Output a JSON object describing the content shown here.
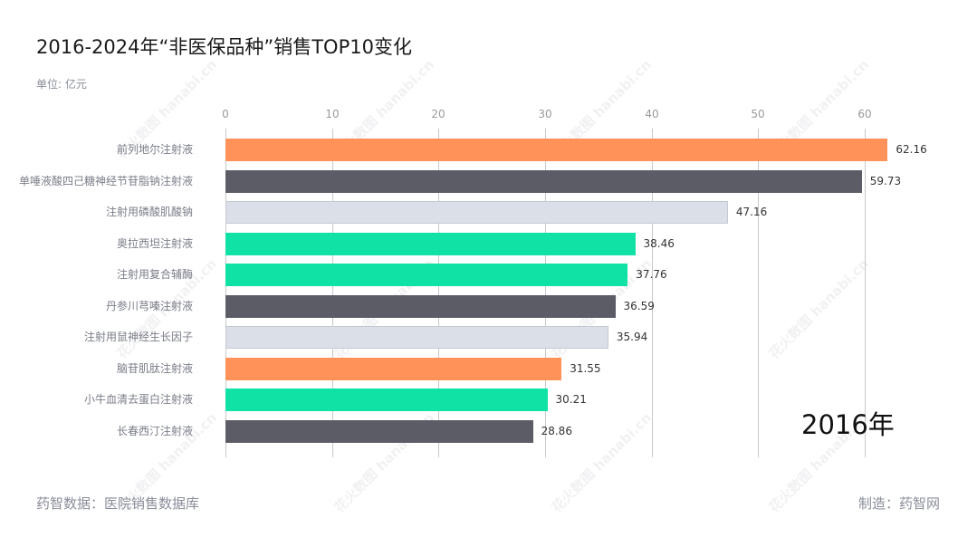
{
  "header": {
    "title": "2016-2024年“非医保品种”销售TOP10变化",
    "unit": "单位: 亿元"
  },
  "footer": {
    "source": "药智数据：医院销售数据库",
    "maker": "制造：药智网"
  },
  "watermark": {
    "text": "花火数图 hanabi.cn"
  },
  "colors": {
    "orange": "#fe9259",
    "dark": "#5c5c66",
    "light": "#dadfe8",
    "green": "#10e2a5"
  },
  "chart_data": {
    "type": "bar",
    "orientation": "horizontal",
    "title": "2016-2024年“非医保品种”销售TOP10变化",
    "subtitle": "单位: 亿元",
    "annotation": "2016年",
    "xlabel": "",
    "ylabel": "",
    "xlim": [
      0,
      65
    ],
    "ticks": [
      0,
      10,
      20,
      30,
      40,
      50,
      60
    ],
    "tick_labels": [
      "0",
      "10",
      "20",
      "30",
      "40",
      "50",
      "60"
    ],
    "grid": true,
    "categories": [
      "前列地尔注射液",
      "单唾液酸四己糖神经节苷脂钠注射液",
      "注射用磷酸肌酸钠",
      "奥拉西坦注射液",
      "注射用复合辅酶",
      "丹参川芎嗪注射液",
      "注射用鼠神经生长因子",
      "脑苷肌肽注射液",
      "小牛血清去蛋白注射液",
      "长春西汀注射液"
    ],
    "values": [
      62.16,
      59.73,
      47.16,
      38.46,
      37.76,
      36.59,
      35.94,
      31.55,
      30.21,
      28.86
    ],
    "value_labels": [
      "62.16",
      "59.73",
      "47.16",
      "38.46",
      "37.76",
      "36.59",
      "35.94",
      "31.55",
      "30.21",
      "28.86"
    ],
    "bar_colors": [
      "orange",
      "dark",
      "light",
      "green",
      "green",
      "dark",
      "light",
      "orange",
      "green",
      "dark"
    ]
  },
  "year": "2016年"
}
